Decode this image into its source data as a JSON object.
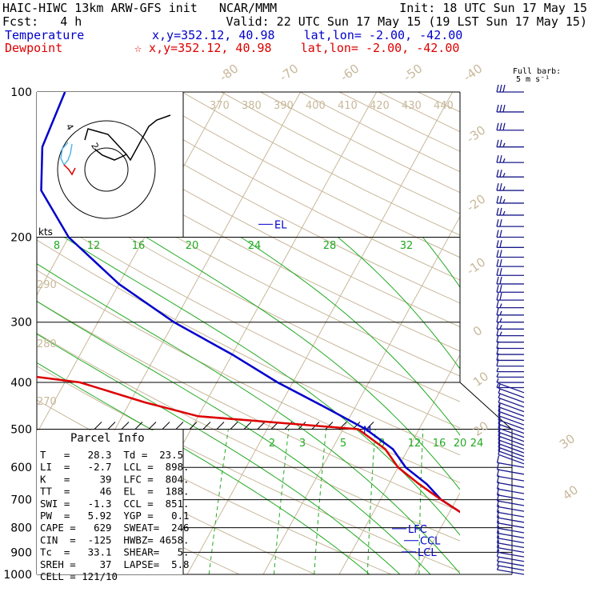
{
  "header": {
    "model": "HAIC-HIWC 13km ARW-GFS init   NCAR/MMM",
    "init": "Init: 18 UTC Sun 17 May 15",
    "fcst": "Fcst:   4 h",
    "valid": "Valid: 22 UTC Sun 17 May 15 (19 LST Sun 17 May 15)",
    "temperature_label": "Temperature",
    "temperature_loc": "x,y=352.12, 40.98    lat,lon= -2.00, -42.00",
    "dewpoint_label": "Dewpoint",
    "dewpoint_loc": "☆ x,y=352.12, 40.98    lat,lon= -2.00, -42.00",
    "barb_note_1": "Full barb:",
    "barb_note_2": "5 m s⁻¹"
  },
  "colors": {
    "temperature": "#0000cc",
    "dewpoint": "#dd0000",
    "isotherm": "#c8b89a",
    "dry_adiabat": "#c8b89a",
    "moist_adiabat": "#22aa22",
    "mixing_ratio": "#22aa22",
    "barbs": "#1a1a8c"
  },
  "chart_data": {
    "type": "skew-t",
    "pressure_levels": [
      100,
      200,
      300,
      400,
      500,
      600,
      700,
      800,
      900,
      1000
    ],
    "isotherm_labels": [
      "-80",
      "-70",
      "-60",
      "-50",
      "-40",
      "-30",
      "-20",
      "-10",
      "0",
      "10",
      "20",
      "30",
      "40"
    ],
    "theta_labels": [
      "370",
      "380",
      "390",
      "400",
      "410",
      "420",
      "430",
      "440"
    ],
    "theta_left_labels": [
      "290",
      "280",
      "270"
    ],
    "moist_labels": [
      "8",
      "12",
      "16",
      "20",
      "24",
      "28",
      "32"
    ],
    "mixing_ratio_labels": [
      "2",
      "3",
      "5",
      "8",
      "12",
      "16",
      "20",
      "24"
    ],
    "temperature_profile": [
      [
        100,
        -71
      ],
      [
        130,
        -70
      ],
      [
        160,
        -67
      ],
      [
        200,
        -60
      ],
      [
        250,
        -50
      ],
      [
        300,
        -40
      ],
      [
        350,
        -30
      ],
      [
        400,
        -22
      ],
      [
        450,
        -14
      ],
      [
        500,
        -7
      ],
      [
        550,
        -2
      ],
      [
        600,
        1
      ],
      [
        650,
        5
      ],
      [
        700,
        8
      ],
      [
        750,
        12
      ],
      [
        800,
        16
      ],
      [
        850,
        20
      ],
      [
        900,
        24
      ],
      [
        950,
        26
      ],
      [
        1000,
        28.3
      ]
    ],
    "dewpoint_profile": [
      [
        100,
        -80
      ],
      [
        125,
        -82
      ],
      [
        150,
        -84
      ],
      [
        175,
        -85
      ],
      [
        200,
        -80
      ],
      [
        230,
        -72
      ],
      [
        260,
        -70
      ],
      [
        280,
        -75
      ],
      [
        300,
        -76
      ],
      [
        320,
        -64
      ],
      [
        340,
        -79
      ],
      [
        370,
        -66
      ],
      [
        400,
        -48
      ],
      [
        440,
        -38
      ],
      [
        470,
        -30
      ],
      [
        500,
        -8
      ],
      [
        550,
        -3
      ],
      [
        600,
        0
      ],
      [
        650,
        4
      ],
      [
        700,
        8
      ],
      [
        750,
        12
      ],
      [
        800,
        16
      ],
      [
        850,
        18
      ],
      [
        900,
        19
      ],
      [
        940,
        20
      ],
      [
        960,
        22
      ],
      [
        1000,
        23.5
      ]
    ],
    "parcel_markers": [
      {
        "label": "EL",
        "p": 188
      },
      {
        "label": "LFC",
        "p": 804
      },
      {
        "label": "CCL",
        "p": 851
      },
      {
        "label": "LCL",
        "p": 898
      }
    ],
    "marker_M_p": 500,
    "hodograph_label": "kts",
    "wind_barbs": {
      "pressures": [
        100,
        110,
        120,
        130,
        140,
        150,
        160,
        170,
        180,
        190,
        200,
        210,
        220,
        230,
        240,
        250,
        260,
        270,
        280,
        290,
        300,
        310,
        320,
        330,
        340,
        350,
        360,
        370,
        380,
        390,
        400,
        410,
        420,
        430,
        440,
        450,
        460,
        470,
        480,
        490,
        500,
        510,
        520,
        530,
        540,
        550,
        560,
        570,
        580,
        590,
        600,
        620,
        640,
        660,
        680,
        700,
        720,
        740,
        760,
        780,
        800,
        820,
        840,
        860,
        880,
        900,
        920,
        940,
        960,
        980,
        1000
      ],
      "speed_ms": [
        30,
        30,
        28,
        27,
        26,
        25,
        25,
        24,
        24,
        22,
        22,
        21,
        21,
        20,
        20,
        19,
        19,
        18,
        17,
        16,
        15,
        15,
        14,
        12,
        12,
        10,
        10,
        8,
        7,
        6,
        4,
        3,
        2,
        3,
        4,
        5,
        6,
        7,
        8,
        8,
        9,
        9,
        10,
        10,
        10,
        10,
        10,
        10,
        10,
        10,
        10,
        10,
        9,
        9,
        9,
        9,
        8,
        8,
        8,
        8,
        8,
        8,
        8,
        8,
        8,
        8,
        8,
        8,
        7,
        7,
        7
      ]
    }
  },
  "parcel_info": {
    "title": "Parcel Info",
    "rows": [
      "T   =   28.3  Td =  23.5",
      "LI  =   -2.7  LCL =  898.",
      "K   =     39  LFC =  804.",
      "TT  =     46  EL  =  188.",
      "SWI =   -1.3  CCL =  851.",
      "PW  =   5.92  YGP =   0.1",
      "CAPE =   629  SWEAT=  246",
      "CIN  =  -125  HWBZ= 4658.",
      "Tc  =   33.1  SHEAR=   5.",
      "SREH =    37  LAPSE=  5.8",
      "CELL = 121/10"
    ]
  }
}
